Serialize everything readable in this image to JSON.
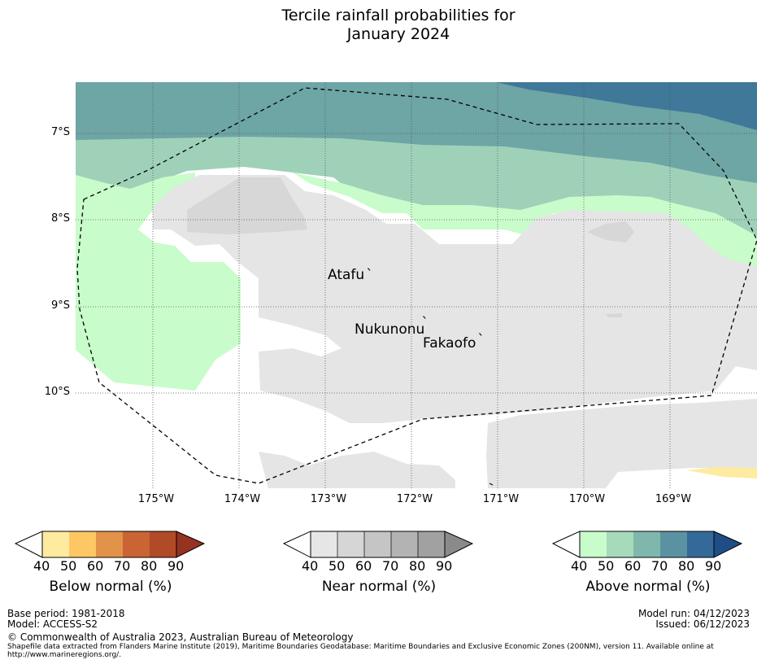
{
  "title": {
    "line1": "Tercile rainfall probabilities for",
    "line2": "January 2024"
  },
  "map": {
    "lat_ticks": [
      "7°S",
      "8°S",
      "9°S",
      "10°S"
    ],
    "lon_ticks": [
      "175°W",
      "174°W",
      "173°W",
      "172°W",
      "171°W",
      "170°W",
      "169°W"
    ],
    "places": [
      {
        "name": "Atafu",
        "mark": "`"
      },
      {
        "name": "Nukunonu",
        "mark": "`"
      },
      {
        "name": "Fakaofo",
        "mark": "`"
      }
    ]
  },
  "colorbars": [
    {
      "name": "below",
      "label": "Below normal (%)",
      "ticks": [
        "40",
        "50",
        "60",
        "70",
        "80",
        "90"
      ],
      "colors": [
        "#ffffff",
        "#feeb9f",
        "#fdc764",
        "#e29249",
        "#cb6434",
        "#b04a27",
        "#953221"
      ]
    },
    {
      "name": "near",
      "label": "Near normal (%)",
      "ticks": [
        "40",
        "50",
        "60",
        "70",
        "80",
        "90"
      ],
      "colors": [
        "#ffffff",
        "#e6e6e6",
        "#d6d6d6",
        "#c5c5c5",
        "#b3b3b3",
        "#a1a1a1",
        "#8a8a8a"
      ]
    },
    {
      "name": "above",
      "label": "Above normal (%)",
      "ticks": [
        "40",
        "50",
        "60",
        "70",
        "80",
        "90"
      ],
      "colors": [
        "#ffffff",
        "#c9fccb",
        "#a7d9bb",
        "#80b7ad",
        "#5b92a2",
        "#336a9a",
        "#1f4e86"
      ]
    }
  ],
  "footer": {
    "base_period": "Base period: 1981-2018",
    "model": "Model: ACCESS-S2",
    "model_run": "Model run: 04/12/2023",
    "issued": "Issued: 06/12/2023",
    "copyright": "© Commonwealth of Australia 2023, Australian Bureau of Meteorology",
    "shapefile_line1": "Shapefile data extracted from Flanders Marine Institute (2019), Maritime Boundaries Geodatabase: Maritime Boundaries and Exclusive Economic Zones (200NM), version 11. Available online at",
    "shapefile_line2": "http://www.marineregions.org/."
  }
}
